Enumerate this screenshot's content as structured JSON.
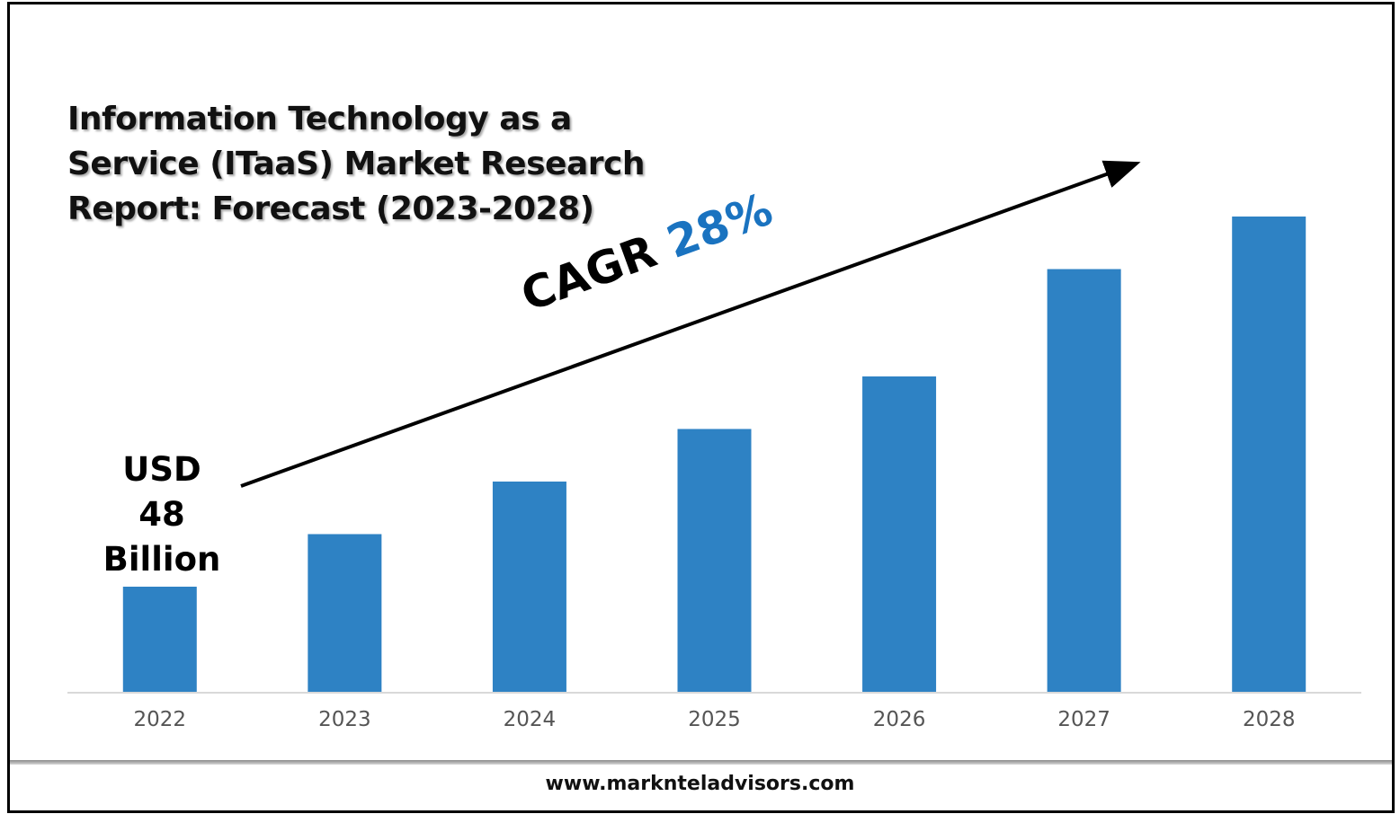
{
  "chart_data": {
    "type": "bar",
    "title": "Information Technology as a Service (ITaaS) Market Research Report: Forecast (2023-2028)",
    "title_lines": [
      "Information Technology as a",
      "Service (ITaaS) Market Research",
      "Report: Forecast (2023-2028)"
    ],
    "categories": [
      "2022",
      "2023",
      "2024",
      "2025",
      "2026",
      "2027",
      "2028"
    ],
    "values": [
      48,
      72,
      96,
      120,
      144,
      193,
      217
    ],
    "units": "USD Billion",
    "xlabel": "",
    "ylabel": "",
    "ylim": [
      0,
      217
    ],
    "grid": false,
    "bar_color": "#2e82c4",
    "annotations": {
      "start_value_lines": [
        "USD",
        "48",
        "Billion"
      ],
      "cagr_label": "CAGR",
      "cagr_value": "28%",
      "cagr_color": "#1a73c0"
    }
  },
  "footer": {
    "website": "www.marknteladvisors.com"
  }
}
